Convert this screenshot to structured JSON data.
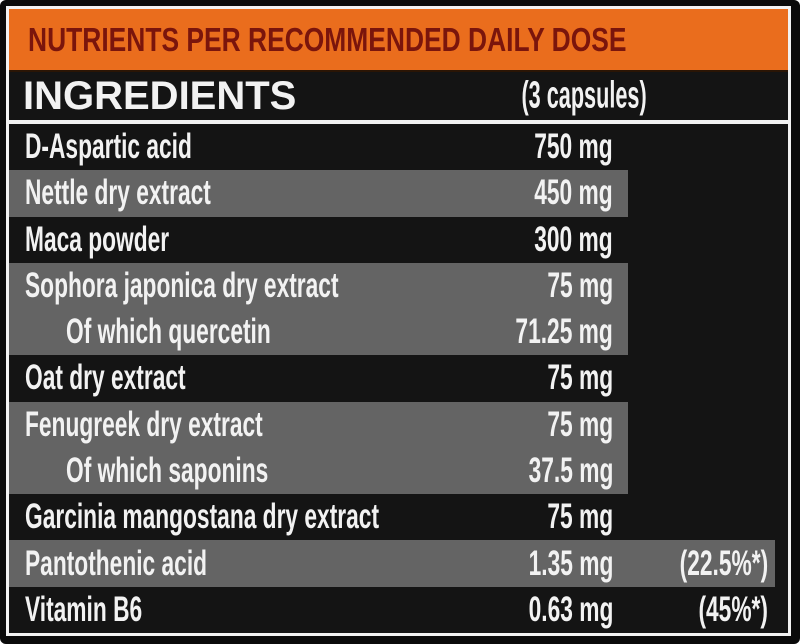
{
  "header": {
    "title": "NUTRIENTS PER RECOMMENDED DAILY DOSE"
  },
  "table": {
    "ingredients_label": "INGREDIENTS",
    "dose_label": "(3 capsules)",
    "rows": [
      {
        "name": "D-Aspartic acid",
        "amount": "750 mg",
        "percent": "",
        "shade": "none",
        "indent": false
      },
      {
        "name": "Nettle dry extract",
        "amount": "450 mg",
        "percent": "",
        "shade": "short",
        "indent": false
      },
      {
        "name": "Maca powder",
        "amount": "300 mg",
        "percent": "",
        "shade": "none",
        "indent": false
      },
      {
        "name": "Sophora japonica dry extract",
        "amount": "75 mg",
        "percent": "",
        "shade": "short",
        "indent": false
      },
      {
        "name": "Of which quercetin",
        "amount": "71.25 mg",
        "percent": "",
        "shade": "short",
        "indent": true
      },
      {
        "name": "Oat dry extract",
        "amount": "75 mg",
        "percent": "",
        "shade": "none",
        "indent": false
      },
      {
        "name": "Fenugreek dry extract",
        "amount": "75 mg",
        "percent": "",
        "shade": "short",
        "indent": false
      },
      {
        "name": "Of which saponins",
        "amount": "37.5 mg",
        "percent": "",
        "shade": "short",
        "indent": true
      },
      {
        "name": "Garcinia mangostana dry extract",
        "amount": "75 mg",
        "percent": "",
        "shade": "none",
        "indent": false
      },
      {
        "name": "Pantothenic acid",
        "amount": "1.35 mg",
        "percent": "(22.5%*)",
        "shade": "full",
        "indent": false
      },
      {
        "name": "Vitamin B6",
        "amount": "0.63 mg",
        "percent": "(45%*)",
        "shade": "none",
        "indent": false
      }
    ]
  },
  "colors": {
    "orange": "#ea6d1d",
    "title_text": "#7a150c",
    "shade": "#646464",
    "row_bg": "#141414",
    "bar_bg": "#141414",
    "frame": "#0a0a0a",
    "line": "#f2f2f2",
    "text": "#f2f2f2"
  }
}
